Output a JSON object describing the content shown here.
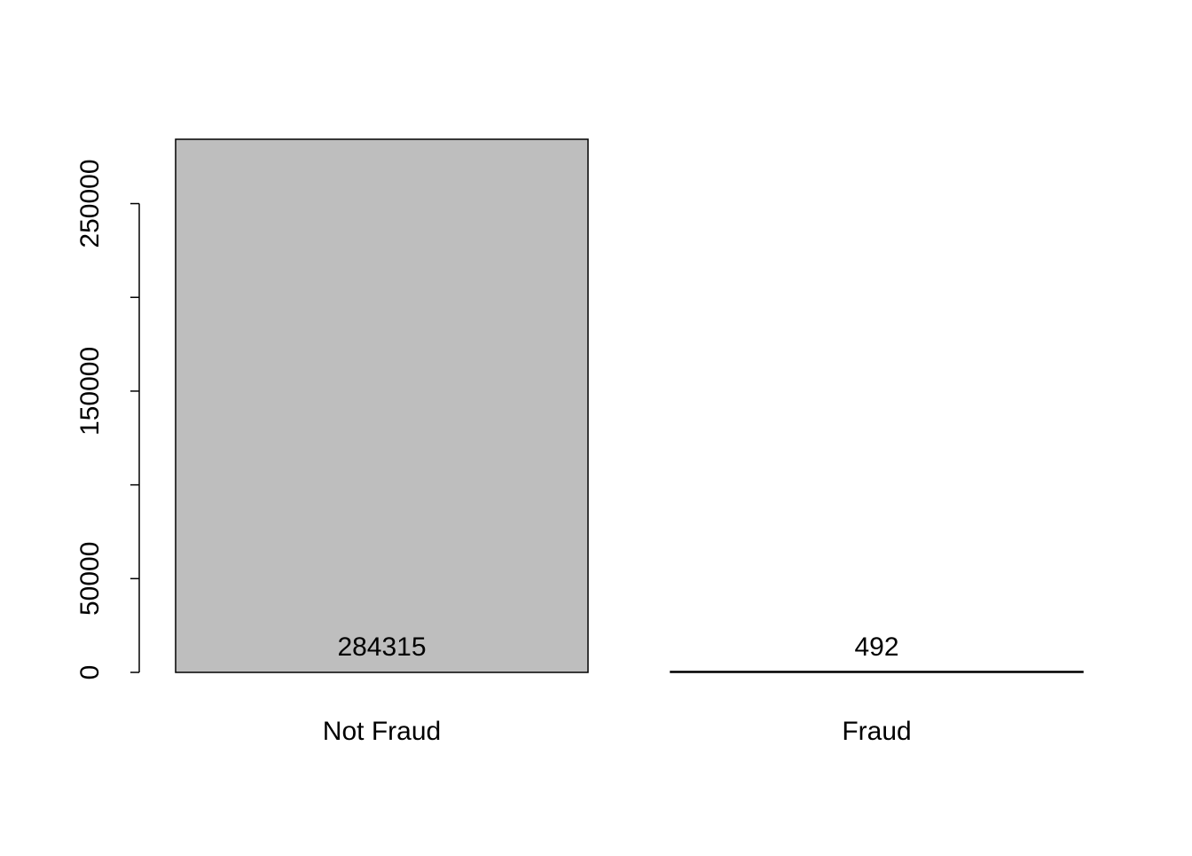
{
  "chart_data": {
    "type": "bar",
    "categories": [
      "Not Fraud",
      "Fraud"
    ],
    "values": [
      284315,
      492
    ],
    "value_labels": [
      "284315",
      "492"
    ],
    "title": "",
    "xlabel": "",
    "ylabel": "",
    "ylim": [
      0,
      284315
    ],
    "y_ticks": [
      0,
      50000,
      100000,
      150000,
      200000,
      250000
    ],
    "y_tick_labels": [
      "0",
      "50000",
      "",
      "150000",
      "",
      "250000"
    ],
    "grid": false,
    "legend": "none",
    "bar_fill": "#bebebe",
    "bar_stroke": "#000000"
  }
}
